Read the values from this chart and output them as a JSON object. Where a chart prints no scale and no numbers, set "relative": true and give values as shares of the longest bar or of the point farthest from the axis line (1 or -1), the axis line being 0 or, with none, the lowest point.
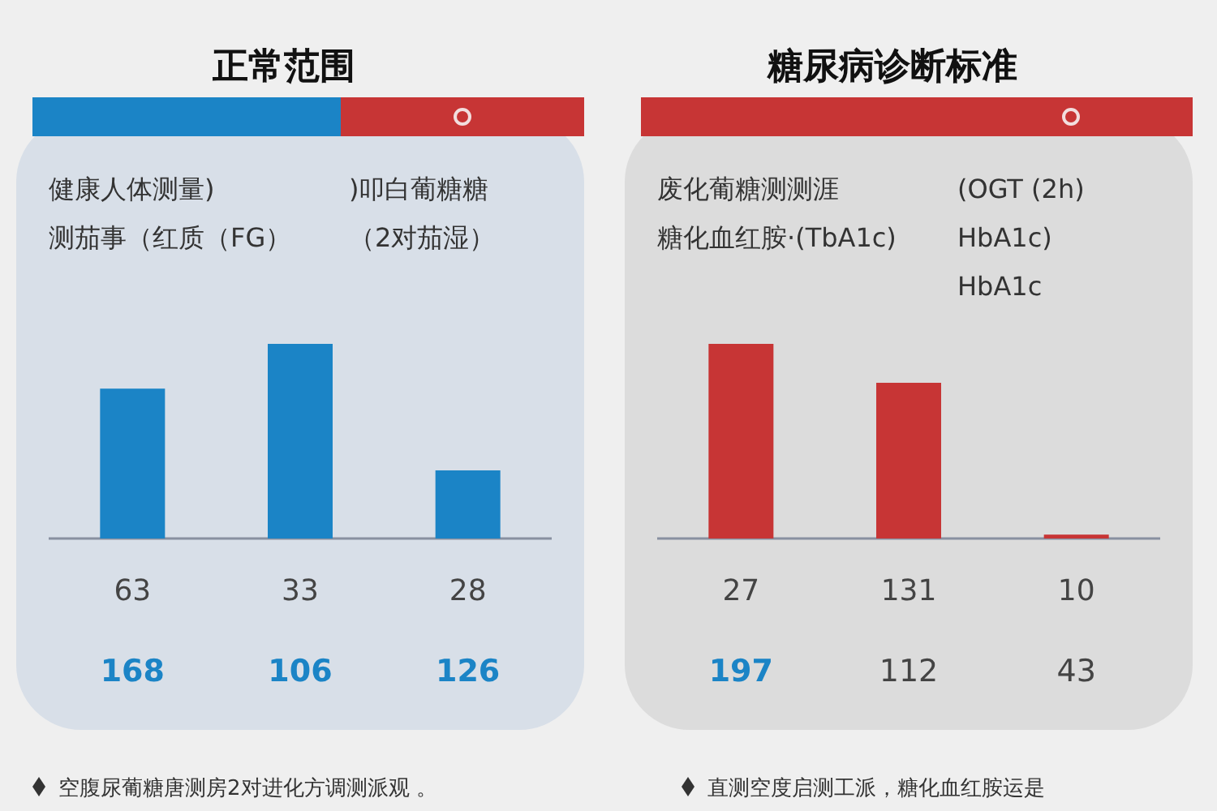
{
  "chart_data": [
    {
      "type": "bar",
      "title": "正常范围",
      "categories": [
        "63",
        "33",
        "28"
      ],
      "values": [
        0.77,
        1,
        0.35
      ],
      "color": "#1b84c6",
      "relative": true,
      "annotations": [
        "健康人体测量)",
        ")叩白葡糖糖",
        "测茄事（红质（FG）",
        "（2对茄湿）",
        "168",
        "106",
        "126",
        "空腹尿葡糖唐测房2对进化方调测派观 。"
      ]
    },
    {
      "type": "bar",
      "title": "糖尿病诊断标准",
      "categories": [
        "27",
        "131",
        "10"
      ],
      "values": [
        1,
        0.8,
        0.02
      ],
      "color": "#c73535",
      "relative": true,
      "annotations": [
        "废化葡糖测测涯",
        "(OGT (2h)",
        "糖化血红胺·(TbA1c)",
        "HbA1c)",
        "HbA1c",
        "197",
        "112",
        "43",
        "直测空度启测工派，糖化血红胺运是"
      ]
    }
  ]
}
